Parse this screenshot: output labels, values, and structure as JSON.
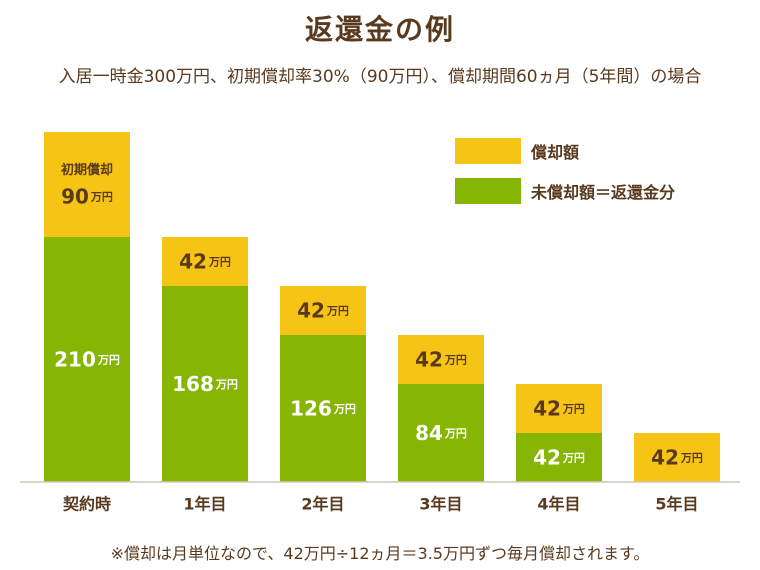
{
  "title": "返還金の例",
  "subtitle": "入居一時金300万円、初期償却率30%（90万円）、償却期間60ヵ月（5年間）の場合",
  "footnote": "※償却は月単位なので、42万円÷12ヵ月＝3.5万円ずつ毎月償却されます。",
  "legend": {
    "amortized": "償却額",
    "unamortized": "未償却額＝返還金分"
  },
  "colors": {
    "amortized": "#f6c414",
    "unamortized": "#86b503",
    "text": "#5a3a1e"
  },
  "chart_data": {
    "type": "bar",
    "stacked": true,
    "title": "返還金の例",
    "subtitle": "入居一時金300万円、初期償却率30%（90万円）、償却期間60ヵ月（5年間）の場合",
    "categories": [
      "契約時",
      "1年目",
      "2年目",
      "3年目",
      "4年目",
      "5年目"
    ],
    "unit": "万円",
    "initial_label": "初期償却",
    "series": [
      {
        "name": "未償却額＝返還金分",
        "values": [
          210,
          168,
          126,
          84,
          42,
          0
        ]
      },
      {
        "name": "償却額",
        "values": [
          90,
          42,
          42,
          42,
          42,
          42
        ]
      }
    ],
    "ylim": [
      0,
      300
    ],
    "grid": false,
    "legend_position": "top-right"
  }
}
